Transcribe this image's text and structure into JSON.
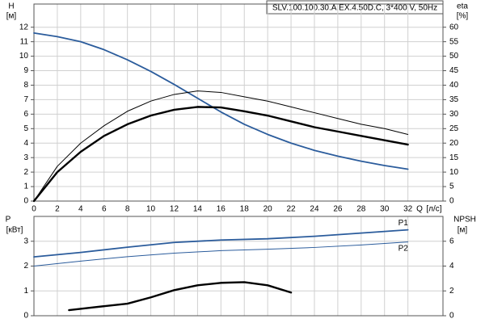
{
  "chart_data": [
    {
      "type": "line",
      "title": "SLV.100.100.30.A.EX.4.50D.C, 3*400 V, 50Hz",
      "ylabel": "H",
      "yunit": "[м]",
      "y2label": "eta",
      "y2unit": "[%]",
      "xlabel": "Q",
      "xunit": "[л/с]",
      "xlim": [
        0,
        35
      ],
      "xticks": [
        0,
        2,
        4,
        6,
        8,
        10,
        12,
        14,
        16,
        18,
        20,
        22,
        24,
        26,
        28,
        30,
        32
      ],
      "ylim": [
        0,
        13.6
      ],
      "yticks": [
        0,
        1,
        2,
        3,
        4,
        5,
        6,
        7,
        8,
        9,
        10,
        11,
        12
      ],
      "y2lim": [
        0,
        68
      ],
      "y2ticks": [
        0,
        5,
        10,
        15,
        20,
        25,
        30,
        35,
        40,
        45,
        50,
        55,
        60
      ],
      "grid": true,
      "series": [
        {
          "color": "#2b5c9c",
          "x": [
            0,
            2,
            4,
            6,
            8,
            10,
            12,
            14,
            16,
            18,
            20,
            22,
            24,
            26,
            28,
            30,
            32
          ],
          "values": [
            11.6,
            11.35,
            11.0,
            10.45,
            9.75,
            8.95,
            8.05,
            7.1,
            6.15,
            5.3,
            4.6,
            4.0,
            3.5,
            3.1,
            2.75,
            2.45,
            2.2
          ]
        },
        {
          "color": "#000000",
          "axis": "y2",
          "x": [
            0,
            2,
            4,
            6,
            8,
            10,
            12,
            14,
            16,
            18,
            20,
            22,
            24,
            26,
            28,
            30,
            32
          ],
          "values": [
            0,
            12,
            20,
            26,
            31,
            34.5,
            36.8,
            38,
            37.5,
            36,
            34.5,
            32.5,
            30.5,
            28.5,
            26.5,
            25,
            23
          ]
        },
        {
          "color": "#000000",
          "axis": "y2",
          "x": [
            0,
            2,
            4,
            6,
            8,
            10,
            12,
            14,
            16,
            18,
            20,
            22,
            24,
            26,
            28,
            30,
            32
          ],
          "values": [
            0,
            10,
            17,
            22.5,
            26.5,
            29.5,
            31.5,
            32.5,
            32.3,
            31,
            29.5,
            27.5,
            25.5,
            24,
            22.5,
            21,
            19.5
          ]
        }
      ]
    },
    {
      "type": "line",
      "ylabel": "P",
      "yunit": "[кВт]",
      "y2label": "NPSH",
      "y2unit": "[м]",
      "xlim": [
        0,
        35
      ],
      "ylim": [
        0,
        4
      ],
      "yticks": [
        0,
        1,
        2,
        3
      ],
      "y2lim": [
        0,
        8
      ],
      "y2ticks": [
        0,
        2,
        4,
        6
      ],
      "grid": true,
      "series": [
        {
          "name": "P1",
          "color": "#2b5c9c",
          "x": [
            0,
            4,
            8,
            12,
            16,
            20,
            24,
            28,
            32
          ],
          "values": [
            2.37,
            2.55,
            2.76,
            2.95,
            3.05,
            3.1,
            3.2,
            3.33,
            3.46
          ]
        },
        {
          "name": "P2",
          "color": "#2b5c9c",
          "x": [
            0,
            4,
            8,
            12,
            16,
            20,
            24,
            28,
            32
          ],
          "values": [
            2.0,
            2.2,
            2.38,
            2.52,
            2.62,
            2.68,
            2.75,
            2.85,
            2.97
          ]
        },
        {
          "color": "#000000",
          "axis": "y2",
          "x": [
            3,
            6,
            8,
            10,
            12,
            14,
            16,
            18,
            20,
            22
          ],
          "values": [
            0.45,
            0.77,
            0.97,
            1.48,
            2.06,
            2.45,
            2.65,
            2.7,
            2.45,
            1.87
          ]
        }
      ]
    }
  ]
}
